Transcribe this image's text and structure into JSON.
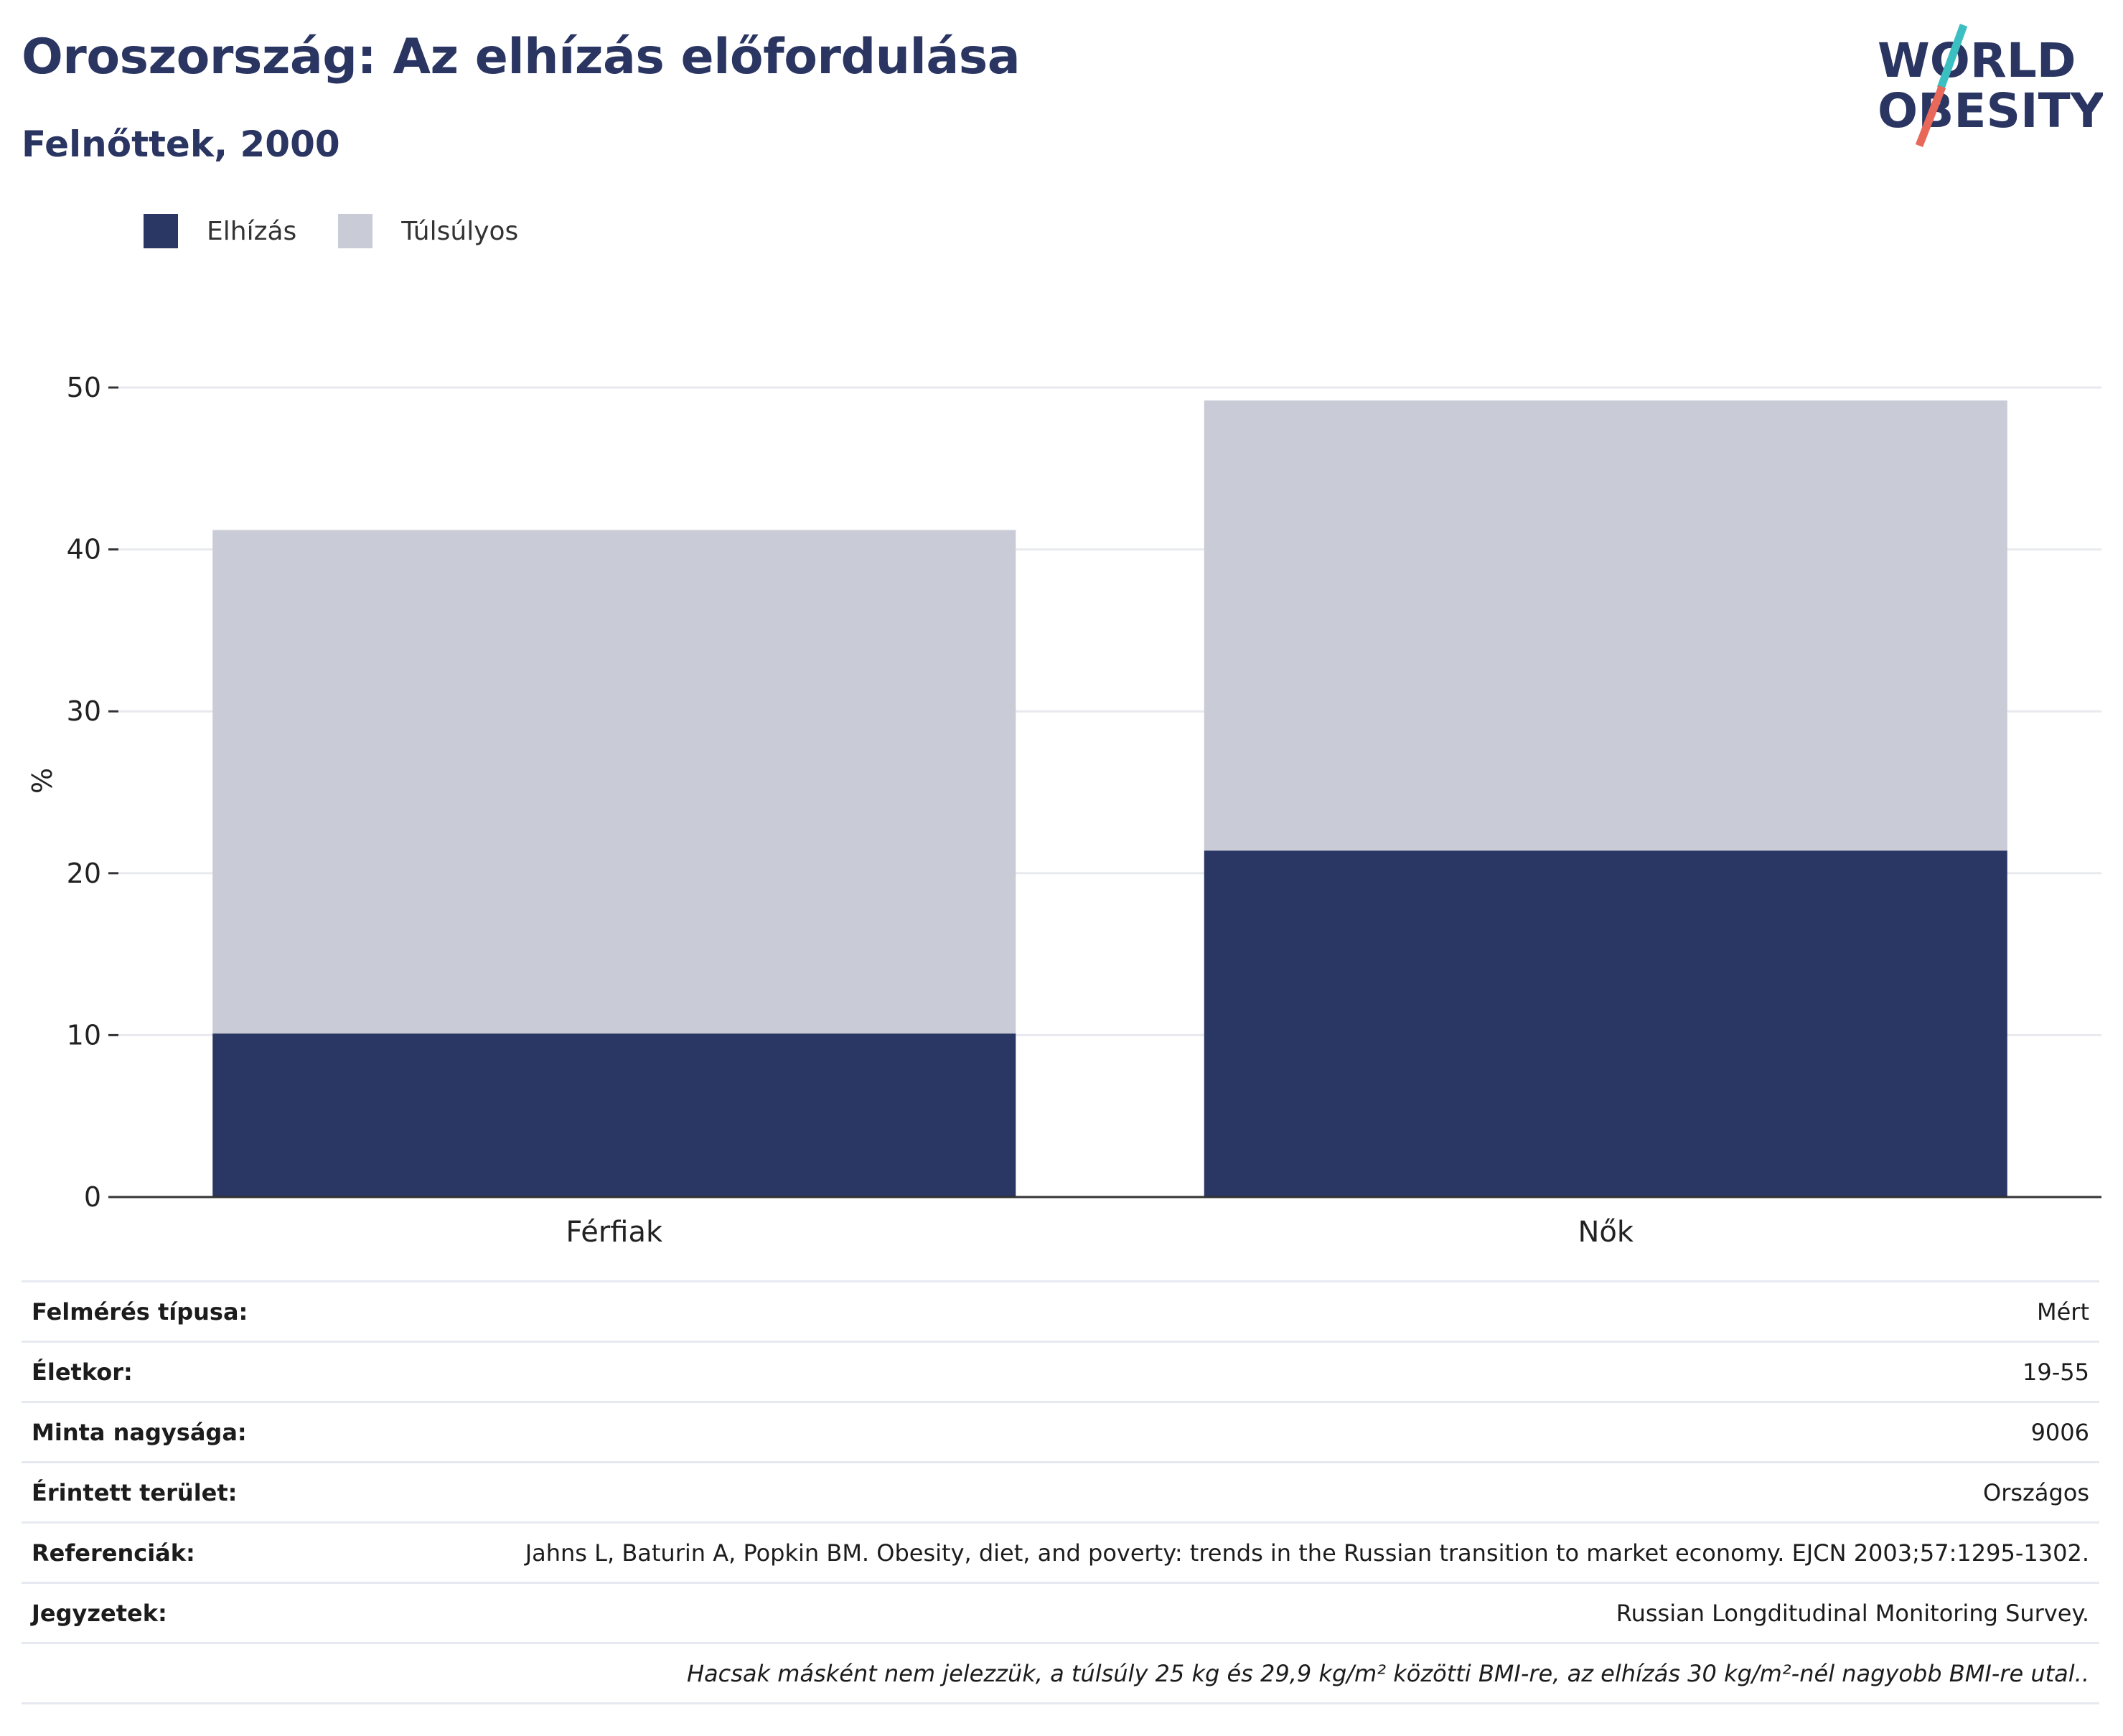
{
  "header": {
    "title": "Oroszország: Az elhízás előfordulása",
    "subtitle": "Felnőttek, 2000"
  },
  "logo": {
    "line1": "WORLD",
    "line2": "OBESITY",
    "color": "#2a3562",
    "accent_teal": "#3bbfc0",
    "accent_red": "#e8685a"
  },
  "chart_data": {
    "type": "bar",
    "stacked": true,
    "categories": [
      "Férfiak",
      "Nők"
    ],
    "series": [
      {
        "name": "Elhízás",
        "color": "#2a3663",
        "values": [
          10.1,
          21.4
        ]
      },
      {
        "name": "Túlsúlyos",
        "color": "#c9cbd7",
        "values": [
          31.1,
          27.8
        ]
      }
    ],
    "ylabel": "%",
    "ylim": [
      0,
      50
    ],
    "yticks": [
      0,
      10,
      20,
      30,
      40,
      50
    ],
    "grid": true,
    "legend": "top-left"
  },
  "info": {
    "rows": [
      {
        "key": "Felmérés típusa:",
        "value": "Mért"
      },
      {
        "key": "Életkor:",
        "value": "19-55"
      },
      {
        "key": "Minta nagysága:",
        "value": "9006"
      },
      {
        "key": "Érintett terület:",
        "value": "Országos"
      },
      {
        "key": "Referenciák:",
        "value": "Jahns L, Baturin A, Popkin BM. Obesity, diet, and poverty: trends in the Russian transition to market economy. EJCN 2003;57:1295-1302."
      },
      {
        "key": "Jegyzetek:",
        "value": "Russian Longditudinal Monitoring Survey."
      }
    ],
    "footnote": "Hacsak másként nem jelezzük, a túlsúly 25 kg és 29,9 kg/m² közötti BMI-re, az elhízás 30 kg/m²-nél nagyobb BMI-re utal.."
  }
}
